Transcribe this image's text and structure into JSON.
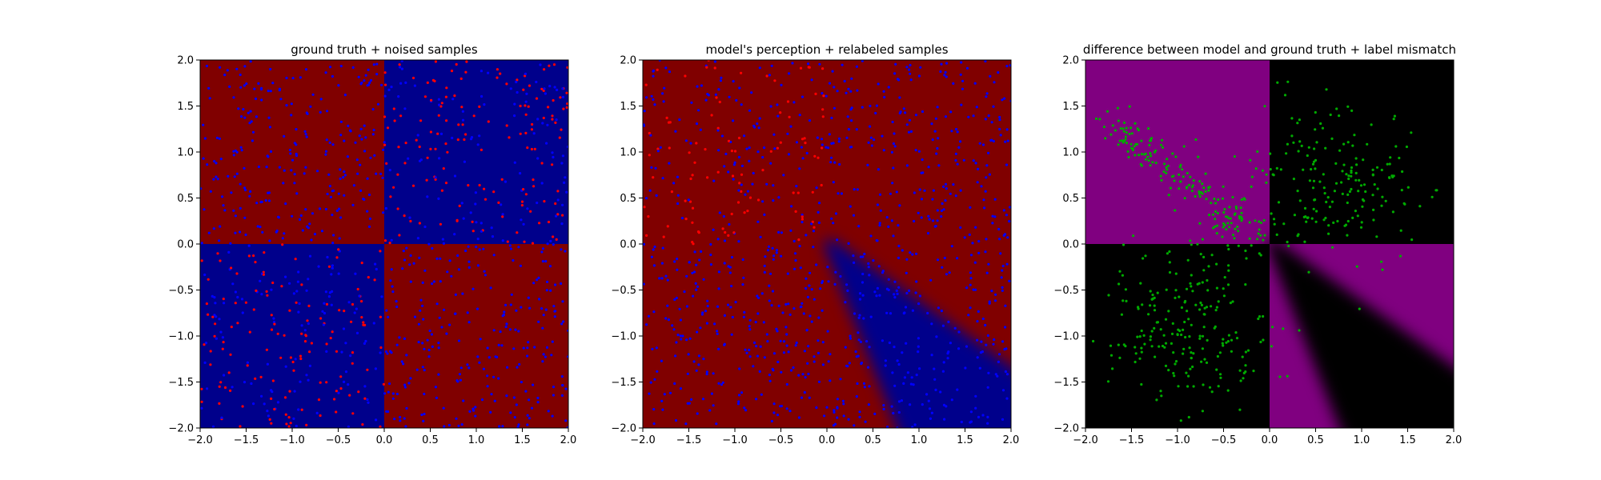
{
  "chart_data": [
    {
      "type": "heatmap",
      "title": "ground truth + noised samples",
      "xlabel": "",
      "ylabel": "",
      "xlim": [
        -2.0,
        2.0
      ],
      "ylim": [
        -2.0,
        2.0
      ],
      "xticks": [
        "−2.0",
        "−1.5",
        "−1.0",
        "−0.5",
        "0.0",
        "0.5",
        "1.0",
        "1.5",
        "2.0"
      ],
      "yticks": [
        "−2.0",
        "−1.5",
        "−1.0",
        "−0.5",
        "0.0",
        "0.5",
        "1.0",
        "1.5",
        "2.0"
      ],
      "grid": false,
      "background": "quadrants: red where x*y<0, blue where x*y>0",
      "colors": {
        "region_a": "#800000",
        "region_b": "#00008b",
        "point_red": "#ff0000",
        "point_blue": "#0000ff"
      },
      "scatter": {
        "point_count": 1000,
        "x_range": [
          -2.0,
          2.0
        ],
        "y_range": [
          -2.0,
          2.0
        ],
        "colors": [
          "red",
          "blue"
        ]
      }
    },
    {
      "type": "heatmap",
      "title": "model's perception + relabeled samples",
      "xlabel": "",
      "ylabel": "",
      "xlim": [
        -2.0,
        2.0
      ],
      "ylim": [
        -2.0,
        2.0
      ],
      "xticks": [
        "−2.0",
        "−1.5",
        "−1.0",
        "−0.5",
        "0.0",
        "0.5",
        "1.0",
        "1.5",
        "2.0"
      ],
      "yticks": [
        "−2.0",
        "−1.5",
        "−1.0",
        "−0.5",
        "0.0",
        "0.5",
        "1.0",
        "1.5",
        "2.0"
      ],
      "grid": false,
      "background": "mostly red; blue wedge from origin toward lower-right (x≈0.9..2.0 at y=-2.0, y≈-1.5 at x=2.0)",
      "colors": {
        "region_a": "#800000",
        "region_b": "#00008b",
        "point_red": "#ff0000",
        "point_blue": "#0000ff"
      },
      "scatter": {
        "point_count": 1000,
        "x_range": [
          -2.0,
          2.0
        ],
        "y_range": [
          -2.0,
          2.0
        ],
        "colors": [
          "red",
          "blue"
        ]
      }
    },
    {
      "type": "heatmap",
      "title": "difference between model and ground truth + label mismatch",
      "xlabel": "",
      "ylabel": "",
      "xlim": [
        -2.0,
        2.0
      ],
      "ylim": [
        -2.0,
        2.0
      ],
      "xticks": [
        "−2.0",
        "−1.5",
        "−1.0",
        "−0.5",
        "0.0",
        "0.5",
        "1.0",
        "1.5",
        "2.0"
      ],
      "yticks": [
        "−2.0",
        "−1.5",
        "−1.0",
        "−0.5",
        "0.0",
        "0.5",
        "1.0",
        "1.5",
        "2.0"
      ],
      "grid": false,
      "background": "purple in top-left and bottom-right quadrants, black in the others; black wedge inside bottom-right",
      "colors": {
        "mismatch": "#800080",
        "match": "#000000",
        "point": "#00aa00"
      },
      "scatter": {
        "point_count": 600,
        "x_range": [
          -2.0,
          2.0
        ],
        "y_range": [
          -2.0,
          2.0
        ],
        "colors": [
          "green"
        ]
      }
    }
  ]
}
